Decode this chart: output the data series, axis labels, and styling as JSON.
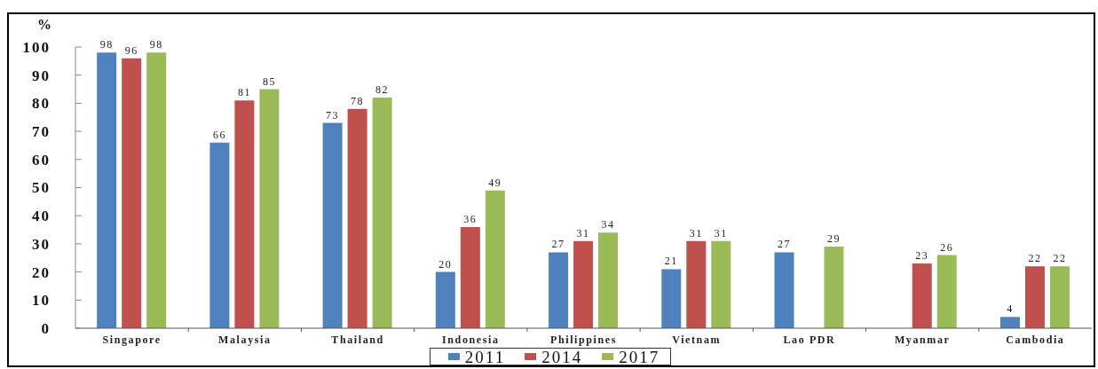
{
  "chart_data": {
    "type": "bar",
    "ylabel": "%",
    "categories": [
      "Singapore",
      "Malaysia",
      "Thailand",
      "Indonesia",
      "Philippines",
      "Vietnam",
      "Lao PDR",
      "Myanmar",
      "Cambodia"
    ],
    "series": [
      {
        "name": "2011",
        "color": "#4f81bd",
        "values": [
          98,
          66,
          73,
          20,
          27,
          21,
          27,
          null,
          4
        ]
      },
      {
        "name": "2014",
        "color": "#c0504d",
        "values": [
          96,
          81,
          78,
          36,
          31,
          31,
          null,
          23,
          22
        ]
      },
      {
        "name": "2017",
        "color": "#9bbb59",
        "values": [
          98,
          85,
          82,
          49,
          34,
          31,
          29,
          26,
          22
        ]
      }
    ],
    "ylim": [
      0,
      100
    ],
    "yticks": [
      0,
      10,
      20,
      30,
      40,
      50,
      60,
      70,
      80,
      90,
      100
    ],
    "legend": "bottom",
    "data_labels": true
  }
}
